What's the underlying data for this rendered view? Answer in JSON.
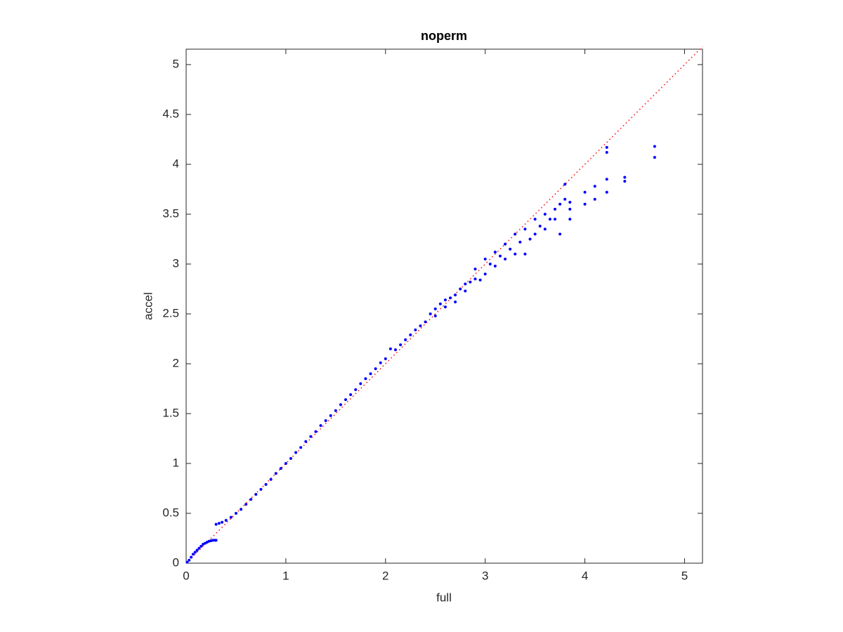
{
  "chart_data": {
    "type": "scatter",
    "title": "noperm",
    "x_label": "full",
    "y_label": "accel",
    "xlim": [
      0,
      5.18
    ],
    "ylim": [
      0,
      5.155
    ],
    "xticks": [
      0,
      1,
      2,
      3,
      4,
      5
    ],
    "yticks": [
      0,
      0.5,
      1,
      1.5,
      2,
      2.5,
      3,
      3.5,
      4,
      4.5,
      5
    ],
    "series": [
      {
        "color": "#0000ff",
        "style": "dots",
        "x": [
          0.01,
          0.03,
          0.05,
          0.07,
          0.09,
          0.11,
          0.13,
          0.15,
          0.17,
          0.19,
          0.21,
          0.23,
          0.25,
          0.27,
          0.29,
          0.3,
          0.3,
          0.33,
          0.36,
          0.4,
          0.45,
          0.5,
          0.55,
          0.6,
          0.65,
          0.7,
          0.75,
          0.8,
          0.85,
          0.9,
          0.95,
          1.0,
          1.05,
          1.1,
          1.15,
          1.2,
          1.25,
          1.3,
          1.35,
          1.4,
          1.45,
          1.5,
          1.55,
          1.6,
          1.65,
          1.7,
          1.75,
          1.8,
          1.85,
          1.9,
          1.95,
          2.0,
          2.05,
          2.1,
          2.15,
          2.2,
          2.25,
          2.3,
          2.35,
          2.4,
          2.45,
          2.5,
          2.5,
          2.55,
          2.6,
          2.6,
          2.65,
          2.7,
          2.7,
          2.75,
          2.8,
          2.8,
          2.85,
          2.9,
          2.9,
          2.95,
          3.0,
          3.0,
          3.05,
          3.1,
          3.1,
          3.15,
          3.2,
          3.2,
          3.25,
          3.3,
          3.3,
          3.35,
          3.4,
          3.4,
          3.45,
          3.5,
          3.5,
          3.55,
          3.6,
          3.6,
          3.65,
          3.7,
          3.7,
          3.75,
          3.75,
          3.8,
          3.8,
          3.85,
          3.85,
          3.85,
          4.0,
          4.0,
          4.1,
          4.1,
          4.22,
          4.22,
          4.22,
          4.22,
          4.4,
          4.4,
          4.7,
          4.7
        ],
        "values": [
          0.01,
          0.03,
          0.06,
          0.09,
          0.11,
          0.13,
          0.15,
          0.17,
          0.19,
          0.2,
          0.21,
          0.22,
          0.225,
          0.23,
          0.23,
          0.23,
          0.39,
          0.4,
          0.41,
          0.43,
          0.46,
          0.5,
          0.54,
          0.59,
          0.64,
          0.69,
          0.74,
          0.79,
          0.84,
          0.9,
          0.95,
          1.0,
          1.05,
          1.11,
          1.16,
          1.22,
          1.27,
          1.32,
          1.38,
          1.43,
          1.48,
          1.53,
          1.59,
          1.64,
          1.69,
          1.74,
          1.8,
          1.85,
          1.9,
          1.95,
          2.01,
          2.05,
          2.15,
          2.14,
          2.19,
          2.24,
          2.29,
          2.34,
          2.38,
          2.42,
          2.5,
          2.55,
          2.48,
          2.6,
          2.64,
          2.57,
          2.66,
          2.69,
          2.62,
          2.75,
          2.8,
          2.73,
          2.82,
          2.95,
          2.85,
          2.84,
          3.05,
          2.9,
          3.0,
          3.12,
          2.98,
          3.08,
          3.2,
          3.05,
          3.15,
          3.3,
          3.1,
          3.22,
          3.35,
          3.1,
          3.25,
          3.45,
          3.3,
          3.38,
          3.5,
          3.35,
          3.45,
          3.55,
          3.45,
          3.6,
          3.3,
          3.8,
          3.65,
          3.55,
          3.45,
          3.62,
          3.72,
          3.6,
          3.78,
          3.65,
          4.17,
          4.12,
          3.85,
          3.72,
          3.87,
          3.83,
          4.18,
          4.07
        ]
      },
      {
        "color": "#ff0000",
        "style": "dotted",
        "x": [
          0,
          5.18
        ],
        "values": [
          0,
          5.18
        ]
      }
    ]
  }
}
